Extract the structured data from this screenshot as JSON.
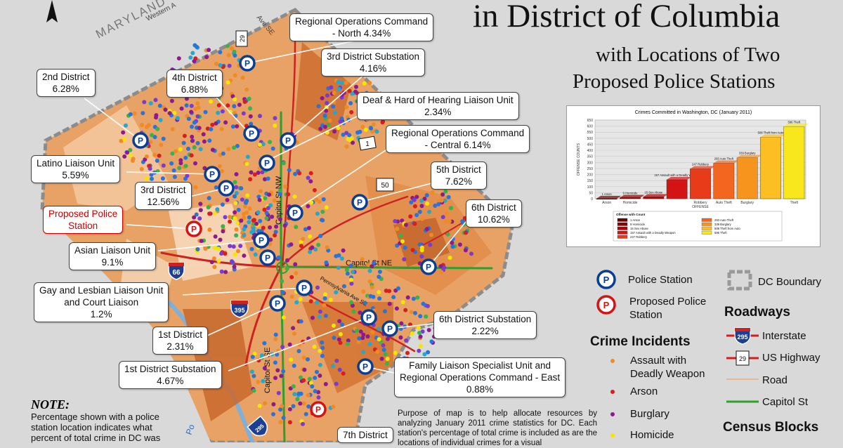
{
  "title": {
    "line1": "in District of Columbia",
    "line2": "with Locations of Two",
    "line3": "Proposed Police Stations"
  },
  "map_labels": {
    "maryland": "MARYLAND",
    "western_ave": "Western A",
    "capitol_st_nw": "Capitol St NW",
    "capitol_st_ne": "Capitol St NE",
    "capitol_st_se": "Capitol St SE",
    "pennsylvania_ave": "Pennsylvania Ave SE",
    "ave_se": "Ave SE",
    "potomac_fragment": "Po"
  },
  "shields": {
    "i66": "66",
    "i395": "395",
    "i295": "295",
    "us29": "29",
    "us1": "1",
    "us50": "50"
  },
  "callouts": [
    {
      "name": "regional-ops-north",
      "line1": "Regional Operations Command",
      "line2": "- North 4.34%"
    },
    {
      "name": "3rd-district-substation",
      "line1": "3rd District Substation",
      "line2": "4.16%"
    },
    {
      "name": "2nd-district",
      "line1": "2nd District",
      "line2": "6.28%"
    },
    {
      "name": "4th-district",
      "line1": "4th District",
      "line2": "6.88%"
    },
    {
      "name": "deaf-hoh-liaison",
      "line1": "Deaf & Hard of Hearing Liaison Unit",
      "line2": "2.34%"
    },
    {
      "name": "regional-ops-central",
      "line1": "Regional Operations Command",
      "line2": "- Central 6.14%"
    },
    {
      "name": "latino-liaison",
      "line1": "Latino Liaison Unit",
      "line2": "5.59%"
    },
    {
      "name": "3rd-district",
      "line1": "3rd District",
      "line2": "12.56%"
    },
    {
      "name": "5th-district",
      "line1": "5th District",
      "line2": "7.62%"
    },
    {
      "name": "proposed-police-station",
      "line1": "Proposed Police",
      "line2": "Station"
    },
    {
      "name": "6th-district",
      "line1": "6th District",
      "line2": "10.62%"
    },
    {
      "name": "asian-liaison",
      "line1": "Asian Liaison Unit",
      "line2": "9.1%"
    },
    {
      "name": "glbt-liaison",
      "line1": "Gay and Lesbian Liaison Unit",
      "line2": "and Court Liaison",
      "line3": "1.2%"
    },
    {
      "name": "6th-district-substation",
      "line1": "6th District Substation",
      "line2": "2.22%"
    },
    {
      "name": "1st-district",
      "line1": "1st District",
      "line2": "2.31%"
    },
    {
      "name": "1st-district-substation",
      "line1": "1st District Substation",
      "line2": "4.67%"
    },
    {
      "name": "family-liaison",
      "line1": "Family Liaison Specialist Unit and",
      "line2": "Regional Operations Command - East",
      "line3": "0.88%"
    },
    {
      "name": "7th-district",
      "line1": "7th District"
    }
  ],
  "legend": {
    "police_station": "Police Station",
    "proposed_station_1": "Proposed Police",
    "proposed_station_2": "Station",
    "dc_boundary": "DC Boundary",
    "roadways_head": "Roadways",
    "interstate": "Interstate",
    "interstate_shield": "295",
    "us_highway": "US Highway",
    "us_shield": "29",
    "road": "Road",
    "capitol_st": "Capitol St",
    "crime_head": "Crime Incidents",
    "assault_1": "Assault with",
    "assault_2": "Deadly Weapon",
    "arson": "Arson",
    "burglary": "Burglary",
    "homicide": "Homicide",
    "census_head": "Census Blocks",
    "colors": {
      "assault": "#f08a24",
      "arson": "#d81e1e",
      "burglary": "#8e1b8e",
      "homicide": "#f5e600",
      "interstate": "#d61c1c",
      "capitol": "#2e9e2e",
      "station": "#0b3d91"
    }
  },
  "note": {
    "heading": "NOTE:",
    "text": "Percentage shown with a police station location indicates what percent of total crime in DC was"
  },
  "purpose": {
    "text": "Purpose of map is to help allocate resources by analyzing January 2011 crime statistics for DC. Each station's percentage of total crime is included as are the locations of individual crimes for a visual"
  },
  "chart_data": {
    "type": "bar",
    "title": "Crimes Committed in Washington, DC (January 2011)",
    "xlabel": "OFFENSE",
    "ylabel": "OFFENSE COUNTS",
    "ylim": [
      0,
      650
    ],
    "yticks": [
      0,
      50,
      100,
      150,
      200,
      250,
      300,
      350,
      400,
      450,
      500,
      550,
      600,
      650
    ],
    "categories": [
      "Arson",
      "Homicide",
      "Sex Abuse",
      "Assault with a Deadly Weapon",
      "Robbery",
      "Auto Theft",
      "Burglary",
      "Theft from Auto",
      "Theft"
    ],
    "axis_labels": [
      "Arson",
      "Homicide",
      "",
      "",
      "Robbery",
      "Auto Theft",
      "Burglary",
      "",
      "Theft"
    ],
    "values": [
      1,
      9,
      15,
      157,
      247,
      293,
      339,
      508,
      596
    ],
    "data_labels": [
      "1 Arson",
      "9 Homicide",
      "15 Sex Abuse",
      "157 Assault with a Deadly Weapon",
      "247 Robbery",
      "293 Auto Theft",
      "339 Burglary",
      "508 Theft from Auto",
      "596 Theft"
    ],
    "colors": [
      "#6b0000",
      "#8b0000",
      "#b30000",
      "#d41414",
      "#e83b1a",
      "#f2661f",
      "#f7941e",
      "#fbbf24",
      "#f7e71c"
    ],
    "legend_title": "Offense with Count",
    "legend": [
      "1 Arson",
      "9 Homicide",
      "15 Sex Abuse",
      "157 Assault with a Deadly Weapon",
      "247 Robbery",
      "293 Auto Theft",
      "339 Burglary",
      "508 Theft from Auto",
      "596 Theft"
    ]
  }
}
